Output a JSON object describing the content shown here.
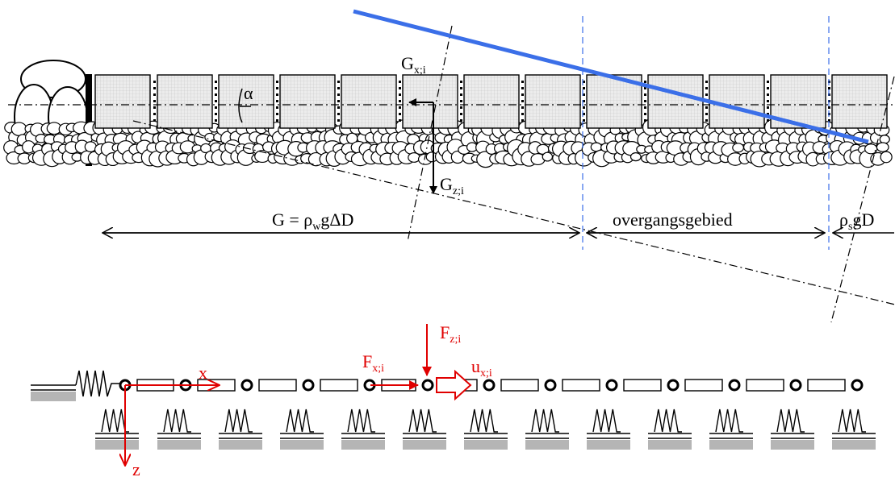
{
  "top": {
    "label_gx_main": "G",
    "label_gx_sub": "x;i",
    "label_gz_main": "G",
    "label_gz_sub": "z;i",
    "label_alpha": "α",
    "label_g_formula_main": "G = ρ",
    "label_g_formula_sub": "w",
    "label_g_formula_rest": "gΔD",
    "label_transition": "overgangsgebied",
    "label_rho_main": "ρ",
    "label_rho_sub": "s",
    "label_rho_rest": "gD",
    "colors": {
      "waterline": "#3b6fe8",
      "boundary": "#3b6fe8",
      "blocks_fill": "#e6e6e6"
    }
  },
  "bottom": {
    "label_x": "x",
    "label_z": "z",
    "label_fx_main": "F",
    "label_fx_sub": "x;i",
    "label_fz_main": "F",
    "label_fz_sub": "z;i",
    "label_ux_main": "u",
    "label_ux_sub": "x;i",
    "colors": {
      "forces": "#e00000",
      "ground": "#b5b5b5"
    }
  }
}
